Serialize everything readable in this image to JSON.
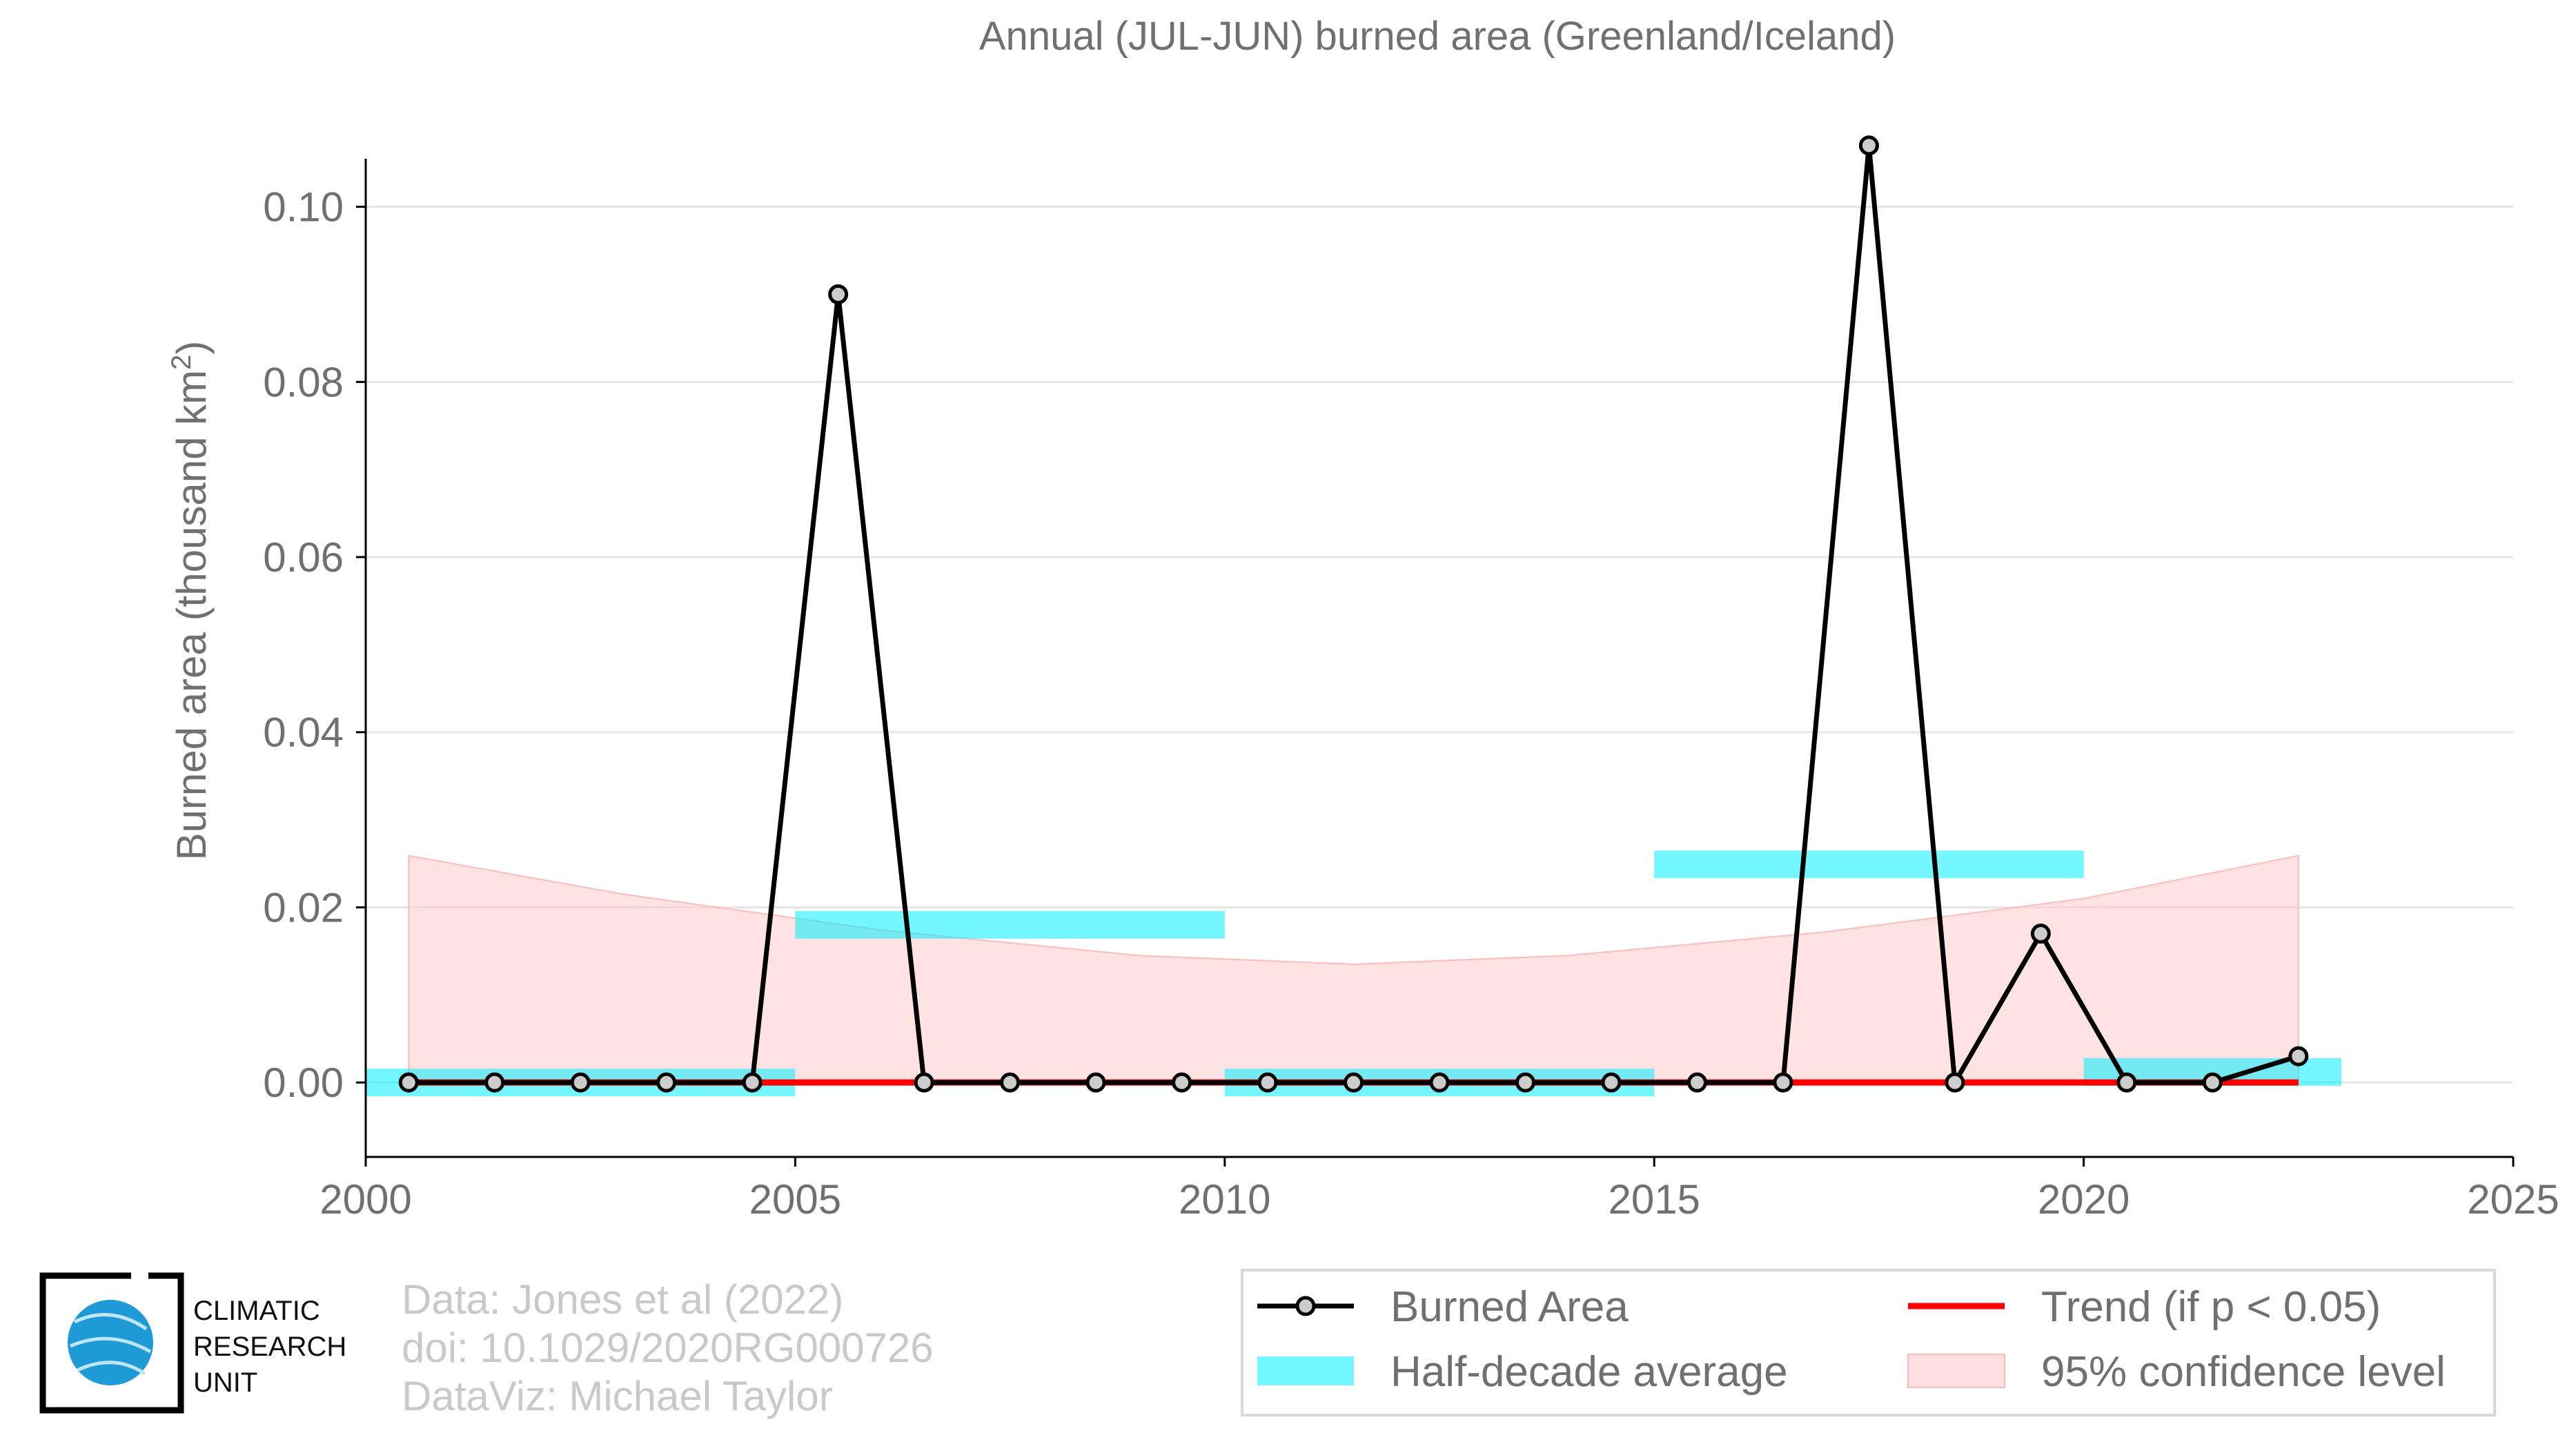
{
  "chart_data": {
    "type": "line",
    "title": "Annual (JUL-JUN) burned area (Greenland/Iceland)",
    "ylabel": "Burned area (thousand km",
    "ylabel_sup": "2",
    "ylabel_close": ")",
    "xlim": [
      2000,
      2025
    ],
    "ylim": [
      -0.0085,
      0.111
    ],
    "x_ticks": [
      2000,
      2005,
      2010,
      2015,
      2020,
      2025
    ],
    "x_tick_labels": [
      "2000",
      "2005",
      "2010",
      "2015",
      "2020",
      "2025"
    ],
    "y_ticks": [
      0,
      0.02,
      0.04,
      0.06,
      0.08,
      0.1
    ],
    "y_tick_labels": [
      "0.00",
      "0.02",
      "0.04",
      "0.06",
      "0.08",
      "0.10"
    ],
    "grid": "horizontal",
    "series": [
      {
        "name": "Burned Area",
        "color": "#000000",
        "marker_fill": "#cccccc",
        "x": [
          2000.5,
          2001.5,
          2002.5,
          2003.5,
          2004.5,
          2005.5,
          2006.5,
          2007.5,
          2008.5,
          2009.5,
          2010.5,
          2011.5,
          2012.5,
          2013.5,
          2014.5,
          2015.5,
          2016.5,
          2017.5,
          2018.5,
          2019.5,
          2020.5,
          2021.5,
          2022.5
        ],
        "y": [
          0,
          0,
          0,
          0,
          0,
          0.09,
          0,
          0,
          0,
          0,
          0,
          0,
          0,
          0,
          0,
          0,
          0,
          0.107,
          0,
          0.017,
          0,
          0,
          0.003
        ]
      },
      {
        "name": "Half-decade average",
        "color": "#00eeff",
        "segments": [
          {
            "x0": 2000,
            "x1": 2005,
            "y": 0
          },
          {
            "x0": 2005,
            "x1": 2010,
            "y": 0.018
          },
          {
            "x0": 2010,
            "x1": 2015,
            "y": 0
          },
          {
            "x0": 2015,
            "x1": 2020,
            "y": 0.0249
          },
          {
            "x0": 2020,
            "x1": 2023,
            "y": 0.0012
          }
        ]
      },
      {
        "name": "Trend (if p < 0.05)",
        "color": "#ff0000",
        "x": [
          2000.5,
          2022.5
        ],
        "y": [
          0,
          0
        ]
      },
      {
        "name": "95% confidence level",
        "color": "#ffcccc",
        "x": [
          2000.5,
          2003,
          2006,
          2009,
          2011.5,
          2014,
          2017,
          2020,
          2022.5
        ],
        "upper": [
          0.0259,
          0.0215,
          0.0174,
          0.0145,
          0.0135,
          0.0145,
          0.0172,
          0.021,
          0.0259
        ],
        "lower": [
          0,
          0,
          0,
          0,
          0,
          0,
          0,
          0,
          0
        ]
      }
    ],
    "legend": {
      "placement": "bottom-right",
      "entries": [
        "Burned Area",
        "Trend (if p < 0.05)",
        "Half-decade average",
        "95% confidence level"
      ]
    }
  },
  "credits": {
    "line1": "Data: Jones et al (2022)",
    "line2": "doi: 10.1029/2020RG000726",
    "line3": "DataViz: Michael Taylor"
  },
  "logo": {
    "line1": "CLIMATIC",
    "line2": "RESEARCH",
    "line3": "UNIT",
    "colors": {
      "globe": "#1e9bd7",
      "frame": "#000000"
    }
  }
}
